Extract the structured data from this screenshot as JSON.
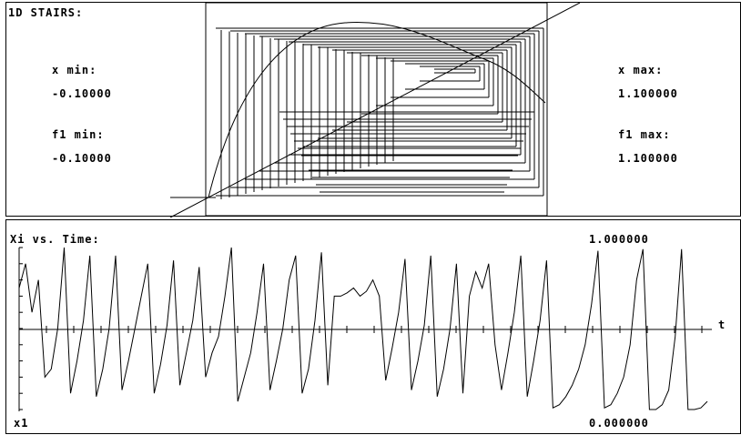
{
  "top_panel": {
    "title": "1D STAIRS:",
    "x_min_label": "x min:",
    "x_min_value": "-0.10000",
    "f1_min_label": "f1 min:",
    "f1_min_value": "-0.10000",
    "x_max_label": "x max:",
    "x_max_value": "1.100000",
    "f1_max_label": "f1 max:",
    "f1_max_value": "1.100000"
  },
  "bottom_panel": {
    "title": "Xi vs. Time:",
    "y_max_value": "1.000000",
    "y_min_value": "0.000000",
    "axis_t_label": "t",
    "series_label": "x1"
  },
  "chart_data": {
    "type": "line",
    "xlabel": "t",
    "ylabel": "x1",
    "ylim": [
      0,
      1
    ],
    "series": [
      {
        "name": "x1",
        "values": [
          0.75,
          0.9,
          0.6,
          0.8,
          0.2,
          0.25,
          0.5,
          1.0,
          0.1,
          0.3,
          0.55,
          0.95,
          0.08,
          0.25,
          0.5,
          0.95,
          0.12,
          0.3,
          0.5,
          0.7,
          0.9,
          0.1,
          0.28,
          0.52,
          0.92,
          0.15,
          0.35,
          0.55,
          0.88,
          0.2,
          0.35,
          0.45,
          0.7,
          1.0,
          0.05,
          0.2,
          0.35,
          0.6,
          0.9,
          0.12,
          0.3,
          0.5,
          0.8,
          0.95,
          0.1,
          0.25,
          0.55,
          0.97,
          0.15,
          0.7,
          0.7,
          0.72,
          0.75,
          0.7,
          0.73,
          0.8,
          0.7,
          0.18,
          0.38,
          0.6,
          0.93,
          0.12,
          0.3,
          0.52,
          0.95,
          0.08,
          0.25,
          0.5,
          0.9,
          0.1,
          0.7,
          0.85,
          0.75,
          0.9,
          0.4,
          0.12,
          0.35,
          0.6,
          0.95,
          0.08,
          0.3,
          0.55,
          0.92,
          0.01,
          0.03,
          0.08,
          0.15,
          0.25,
          0.4,
          0.65,
          0.98,
          0.01,
          0.03,
          0.1,
          0.2,
          0.4,
          0.8,
          0.99,
          0.0,
          0.0,
          0.03,
          0.12,
          0.45,
          0.99,
          0.0,
          0.0,
          0.01,
          0.05
        ]
      }
    ]
  }
}
